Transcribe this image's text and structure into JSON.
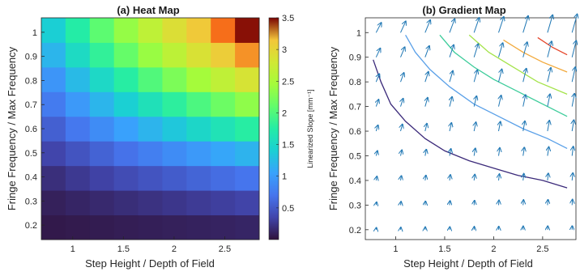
{
  "chart_data": [
    {
      "type": "heatmap",
      "title": "(a) Heat Map",
      "xlabel": "Step Height / Depth of Field",
      "ylabel": "Fringe Frequency / Max Frequency",
      "xticks": [
        "1",
        "1.5",
        "2",
        "2.5"
      ],
      "yticks": [
        "0.2",
        "0.3",
        "0.4",
        "0.5",
        "0.6",
        "0.7",
        "0.8",
        "0.9",
        "1"
      ],
      "xlim": [
        0.69,
        2.84
      ],
      "ylim": [
        0.14,
        1.06
      ],
      "x": [
        0.75,
        1.0,
        1.25,
        1.5,
        1.75,
        2.0,
        2.25,
        2.5,
        2.75
      ],
      "y": [
        0.2,
        0.3,
        0.4,
        0.5,
        0.6,
        0.7,
        0.8,
        0.9,
        1.0
      ],
      "values": [
        [
          0.05,
          0.06,
          0.07,
          0.08,
          0.09,
          0.1,
          0.11,
          0.12,
          0.13
        ],
        [
          0.1,
          0.13,
          0.16,
          0.19,
          0.22,
          0.25,
          0.28,
          0.31,
          0.34
        ],
        [
          0.2,
          0.27,
          0.33,
          0.4,
          0.46,
          0.52,
          0.58,
          0.64,
          0.7
        ],
        [
          0.35,
          0.46,
          0.57,
          0.68,
          0.78,
          0.88,
          0.98,
          1.08,
          1.18
        ],
        [
          0.55,
          0.72,
          0.88,
          1.04,
          1.19,
          1.34,
          1.49,
          1.63,
          1.77
        ],
        [
          0.75,
          0.98,
          1.2,
          1.41,
          1.61,
          1.8,
          1.98,
          2.16,
          2.34
        ],
        [
          0.95,
          1.24,
          1.51,
          1.77,
          2.01,
          2.24,
          2.46,
          2.66,
          2.85
        ],
        [
          1.2,
          1.53,
          1.83,
          2.12,
          2.39,
          2.64,
          2.87,
          3.08,
          3.25
        ],
        [
          1.4,
          1.75,
          2.07,
          2.37,
          2.65,
          2.9,
          3.12,
          3.32,
          3.48
        ]
      ],
      "colorbar": {
        "label": "Linearized Slope [mm⁻¹]",
        "ticks": [
          "0.5",
          "1",
          "1.5",
          "2",
          "2.5",
          "3",
          "3.5"
        ],
        "range": [
          0,
          3.5
        ],
        "colormap": "turbo"
      },
      "grid": false
    },
    {
      "type": "quiver+contour",
      "title": "(b) Gradient Map",
      "xlabel": "Step Height / Depth of Field",
      "ylabel": "Fringe Frequency / Max Frequency",
      "xticks": [
        "1",
        "1.5",
        "2",
        "2.5"
      ],
      "yticks": [
        "0.2",
        "0.3",
        "0.4",
        "0.5",
        "0.6",
        "0.7",
        "0.8",
        "0.9",
        "1"
      ],
      "xlim": [
        0.69,
        2.84
      ],
      "ylim": [
        0.16,
        1.06
      ],
      "arrow_color": "#1f77b4",
      "contours": [
        {
          "level": 0.5,
          "color": "#3b2a7a",
          "points": [
            [
              0.77,
              0.89
            ],
            [
              0.85,
              0.8
            ],
            [
              0.95,
              0.71
            ],
            [
              1.1,
              0.64
            ],
            [
              1.3,
              0.57
            ],
            [
              1.5,
              0.52
            ],
            [
              1.75,
              0.48
            ],
            [
              2.0,
              0.45
            ],
            [
              2.25,
              0.42
            ],
            [
              2.5,
              0.4
            ],
            [
              2.75,
              0.37
            ]
          ]
        },
        {
          "level": 1.0,
          "color": "#5aa0e8",
          "points": [
            [
              1.1,
              0.99
            ],
            [
              1.2,
              0.92
            ],
            [
              1.35,
              0.85
            ],
            [
              1.55,
              0.78
            ],
            [
              1.8,
              0.71
            ],
            [
              2.05,
              0.66
            ],
            [
              2.3,
              0.61
            ],
            [
              2.55,
              0.57
            ],
            [
              2.75,
              0.53
            ]
          ]
        },
        {
          "level": 1.5,
          "color": "#3ccc9a",
          "points": [
            [
              1.45,
              0.99
            ],
            [
              1.6,
              0.92
            ],
            [
              1.8,
              0.86
            ],
            [
              2.0,
              0.81
            ],
            [
              2.25,
              0.76
            ],
            [
              2.5,
              0.71
            ],
            [
              2.75,
              0.66
            ]
          ]
        },
        {
          "level": 2.0,
          "color": "#a4e34a",
          "points": [
            [
              1.75,
              0.99
            ],
            [
              1.95,
              0.92
            ],
            [
              2.2,
              0.86
            ],
            [
              2.45,
              0.8
            ],
            [
              2.75,
              0.75
            ]
          ]
        },
        {
          "level": 2.5,
          "color": "#f2a93b",
          "points": [
            [
              2.1,
              0.97
            ],
            [
              2.3,
              0.92
            ],
            [
              2.5,
              0.88
            ],
            [
              2.75,
              0.84
            ]
          ]
        },
        {
          "level": 3.0,
          "color": "#e5452a",
          "points": [
            [
              2.45,
              0.98
            ],
            [
              2.6,
              0.94
            ],
            [
              2.75,
              0.91
            ]
          ]
        }
      ],
      "quiver_x": [
        0.8,
        1.05,
        1.3,
        1.55,
        1.8,
        2.05,
        2.3,
        2.55,
        2.8
      ],
      "quiver_y": [
        0.2,
        0.3,
        0.4,
        0.5,
        0.6,
        0.7,
        0.8,
        0.9,
        1.0
      ],
      "grid": false
    }
  ]
}
